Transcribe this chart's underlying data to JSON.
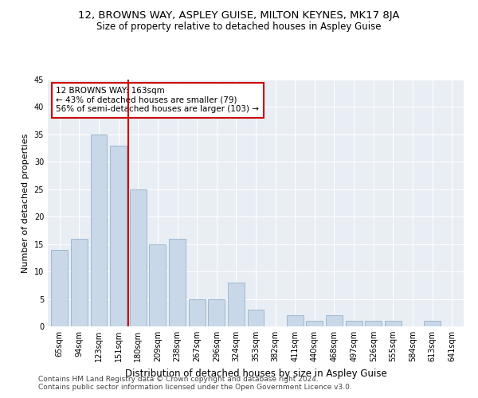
{
  "title": "12, BROWNS WAY, ASPLEY GUISE, MILTON KEYNES, MK17 8JA",
  "subtitle": "Size of property relative to detached houses in Aspley Guise",
  "xlabel": "Distribution of detached houses by size in Aspley Guise",
  "ylabel": "Number of detached properties",
  "categories": [
    "65sqm",
    "94sqm",
    "123sqm",
    "151sqm",
    "180sqm",
    "209sqm",
    "238sqm",
    "267sqm",
    "296sqm",
    "324sqm",
    "353sqm",
    "382sqm",
    "411sqm",
    "440sqm",
    "468sqm",
    "497sqm",
    "526sqm",
    "555sqm",
    "584sqm",
    "613sqm",
    "641sqm"
  ],
  "values": [
    14,
    16,
    35,
    33,
    25,
    15,
    16,
    5,
    5,
    8,
    3,
    0,
    2,
    1,
    2,
    1,
    1,
    1,
    0,
    1,
    0
  ],
  "bar_color": "#c8d8e8",
  "bar_edgecolor": "#a0b8d0",
  "vline_color": "#cc0000",
  "annotation_text": "12 BROWNS WAY: 163sqm\n← 43% of detached houses are smaller (79)\n56% of semi-detached houses are larger (103) →",
  "annotation_box_color": "#ffffff",
  "annotation_box_edgecolor": "#cc0000",
  "ylim": [
    0,
    45
  ],
  "yticks": [
    0,
    5,
    10,
    15,
    20,
    25,
    30,
    35,
    40,
    45
  ],
  "bg_color": "#e8eef4",
  "footer1": "Contains HM Land Registry data © Crown copyright and database right 2024.",
  "footer2": "Contains public sector information licensed under the Open Government Licence v3.0.",
  "title_fontsize": 9.5,
  "subtitle_fontsize": 8.5,
  "xlabel_fontsize": 8.5,
  "ylabel_fontsize": 8,
  "tick_fontsize": 7,
  "annotation_fontsize": 7.5,
  "footer_fontsize": 6.5
}
